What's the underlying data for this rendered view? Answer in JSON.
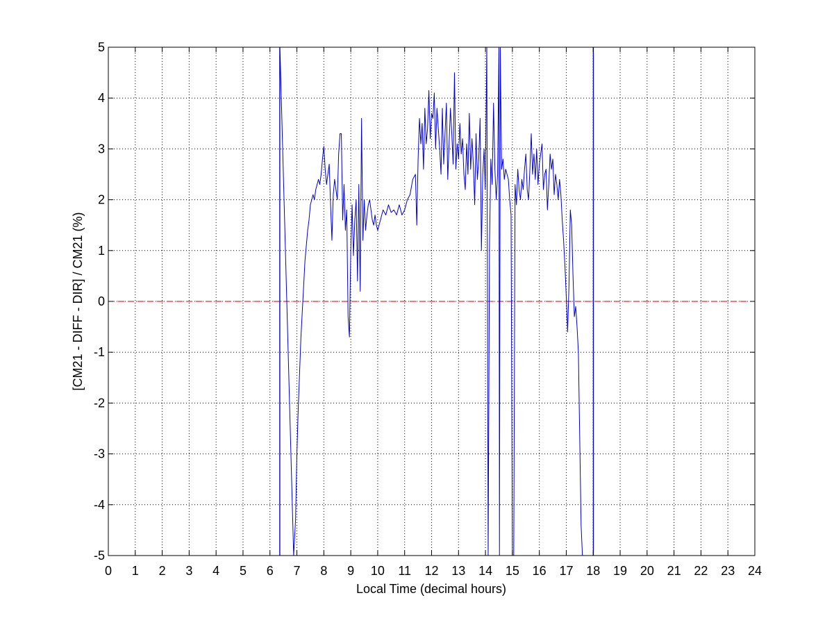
{
  "chart_data": {
    "type": "line",
    "title": "",
    "xlabel": "Local Time (decimal hours)",
    "ylabel": "[CM21 - DIFF - DIR] / CM21 (%)",
    "xlim": [
      0,
      24
    ],
    "ylim": [
      -5,
      5
    ],
    "xticks": [
      "0",
      "1",
      "2",
      "3",
      "4",
      "5",
      "6",
      "7",
      "8",
      "9",
      "10",
      "11",
      "12",
      "13",
      "14",
      "15",
      "16",
      "17",
      "18",
      "19",
      "20",
      "21",
      "22",
      "23",
      "24"
    ],
    "yticks": [
      "5",
      "4",
      "3",
      "2",
      "1",
      "0",
      "-1",
      "-2",
      "-3",
      "-4",
      "-5"
    ],
    "grid": true,
    "grid_style": "dotted",
    "series_color": "#0000cc",
    "reference_line": {
      "y": 0,
      "color": "#cc0000",
      "style": "dashed"
    },
    "series": [
      {
        "x": [
          6.36,
          6.36,
          6.37,
          6.37,
          6.88,
          6.95,
          7.0,
          7.05,
          7.1,
          7.15,
          7.2,
          7.25,
          7.3,
          7.35,
          7.4,
          7.45,
          7.5,
          7.55,
          7.6,
          7.65,
          7.7,
          7.75,
          7.8,
          7.85,
          7.9,
          7.95,
          8.0,
          8.05,
          8.1,
          8.15,
          8.2,
          8.25,
          8.3,
          8.35,
          8.4,
          8.45,
          8.5,
          8.55,
          8.6,
          8.65,
          8.7,
          8.75,
          8.8,
          8.85,
          8.9,
          8.95,
          9.0,
          9.05,
          9.1,
          9.15,
          9.2,
          9.25,
          9.3,
          9.35,
          9.4,
          9.45,
          9.5,
          9.55,
          9.6,
          9.65,
          9.7,
          9.75,
          9.8,
          9.85,
          9.9,
          9.95,
          10.0,
          10.1,
          10.2,
          10.3,
          10.4,
          10.5,
          10.6,
          10.7,
          10.8,
          10.9,
          11.0,
          11.1,
          11.2,
          11.3,
          11.4,
          11.45,
          11.5,
          11.55,
          11.6,
          11.65,
          11.7,
          11.75,
          11.8,
          11.85,
          11.9,
          11.95,
          12.0,
          12.05,
          12.1,
          12.15,
          12.2,
          12.25,
          12.3,
          12.35,
          12.4,
          12.45,
          12.5,
          12.55,
          12.6,
          12.65,
          12.7,
          12.75,
          12.8,
          12.85,
          12.9,
          12.95,
          13.0,
          13.05,
          13.1,
          13.15,
          13.2,
          13.25,
          13.3,
          13.35,
          13.4,
          13.45,
          13.5,
          13.55,
          13.6,
          13.65,
          13.7,
          13.75,
          13.8,
          13.85,
          13.9,
          13.95,
          13.99,
          14.0,
          14.01,
          14.05,
          14.1,
          14.15,
          14.2,
          14.25,
          14.3,
          14.35,
          14.4,
          14.45,
          14.5,
          14.52,
          14.55,
          14.6,
          14.65,
          14.7,
          14.75,
          14.8,
          14.85,
          14.9,
          14.95,
          15.0,
          15.05,
          15.1,
          15.15,
          15.2,
          15.25,
          15.3,
          15.35,
          15.4,
          15.45,
          15.5,
          15.55,
          15.6,
          15.65,
          15.7,
          15.75,
          15.8,
          15.85,
          15.9,
          15.95,
          16.0,
          16.05,
          16.1,
          16.15,
          16.2,
          16.25,
          16.3,
          16.35,
          16.4,
          16.45,
          16.5,
          16.55,
          16.6,
          16.65,
          16.7,
          16.75,
          16.8,
          16.85,
          16.9,
          16.95,
          17.0,
          17.05,
          17.1,
          17.15,
          17.2,
          17.25,
          17.3,
          17.35,
          17.4,
          17.45,
          17.5,
          17.55,
          17.6,
          18.0,
          18.0,
          18.01,
          18.01
        ],
        "y": [
          5.0,
          -5.0,
          -5.0,
          5.0,
          -5.0,
          -4.3,
          -3.0,
          -2.1,
          -1.4,
          -0.7,
          -0.2,
          0.3,
          0.8,
          1.1,
          1.4,
          1.6,
          1.9,
          2.0,
          2.1,
          2.0,
          2.2,
          2.3,
          2.4,
          2.3,
          2.5,
          2.8,
          3.05,
          2.6,
          2.3,
          2.5,
          2.7,
          1.9,
          1.2,
          2.1,
          2.4,
          2.2,
          2.0,
          2.9,
          3.3,
          3.3,
          1.6,
          2.3,
          1.4,
          1.8,
          -0.3,
          -0.7,
          1.0,
          1.9,
          0.9,
          1.6,
          2.0,
          0.4,
          2.3,
          0.2,
          3.6,
          1.2,
          2.0,
          1.4,
          1.7,
          1.9,
          2.0,
          1.8,
          1.6,
          1.5,
          1.7,
          1.5,
          1.4,
          1.6,
          1.8,
          1.7,
          1.9,
          1.75,
          1.8,
          1.7,
          1.9,
          1.7,
          1.8,
          2.0,
          2.1,
          2.4,
          2.5,
          1.5,
          2.8,
          3.6,
          3.1,
          3.5,
          2.6,
          3.8,
          3.1,
          3.4,
          4.15,
          3.2,
          3.7,
          3.6,
          4.1,
          3.0,
          3.8,
          3.4,
          3.0,
          2.5,
          3.8,
          2.7,
          3.3,
          3.9,
          2.4,
          3.1,
          3.8,
          3.3,
          2.7,
          4.5,
          2.6,
          3.1,
          2.8,
          3.5,
          2.9,
          3.2,
          2.5,
          2.2,
          3.1,
          2.5,
          3.7,
          2.6,
          3.2,
          2.7,
          1.9,
          3.3,
          2.4,
          2.8,
          3.6,
          1.0,
          2.5,
          3.0,
          2.2,
          2.6,
          3.0,
          5.0,
          -5.0,
          1.1,
          2.8,
          2.3,
          3.9,
          2.6,
          2.0,
          2.5,
          5.0,
          -5.0,
          5.0,
          2.6,
          2.8,
          2.4,
          2.6,
          2.5,
          2.4,
          2.0,
          1.7,
          -5.0,
          -5.0,
          2.3,
          1.9,
          2.6,
          2.2,
          2.0,
          2.4,
          2.2,
          2.6,
          2.9,
          2.2,
          2.0,
          2.6,
          3.3,
          2.5,
          2.9,
          2.4,
          3.0,
          2.3,
          2.7,
          2.9,
          3.1,
          2.2,
          2.5,
          2.6,
          1.8,
          2.3,
          2.9,
          2.6,
          2.8,
          2.1,
          2.5,
          2.3,
          2.0,
          2.4,
          2.1,
          1.6,
          1.2,
          0.7,
          0.1,
          -0.6,
          0.3,
          1.8,
          1.5,
          0.5,
          -0.3,
          -0.1,
          -0.5,
          -1.0,
          -2.7,
          -4.4,
          -5.0,
          -5.0,
          5.0,
          -5.0,
          5.0
        ]
      }
    ]
  }
}
